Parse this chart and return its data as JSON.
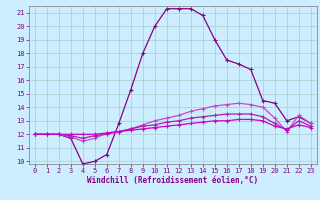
{
  "xlabel": "Windchill (Refroidissement éolien,°C)",
  "xlim": [
    -0.5,
    23.5
  ],
  "ylim": [
    9.8,
    21.5
  ],
  "yticks": [
    10,
    11,
    12,
    13,
    14,
    15,
    16,
    17,
    18,
    19,
    20,
    21
  ],
  "xticks": [
    0,
    1,
    2,
    3,
    4,
    5,
    6,
    7,
    8,
    9,
    10,
    11,
    12,
    13,
    14,
    15,
    16,
    17,
    18,
    19,
    20,
    21,
    22,
    23
  ],
  "background_color": "#cceeff",
  "grid_color": "#aacccc",
  "label_color": "#880088",
  "series": [
    {
      "y": [
        12.0,
        12.0,
        12.0,
        11.7,
        9.8,
        10.0,
        10.5,
        12.8,
        15.3,
        18.0,
        20.0,
        21.3,
        21.3,
        21.3,
        20.8,
        19.0,
        17.5,
        17.2,
        16.8,
        14.5,
        14.3,
        13.0,
        13.3,
        12.8
      ],
      "color": "#880088",
      "lw": 0.9,
      "marker": "+"
    },
    {
      "y": [
        12.0,
        12.0,
        12.0,
        11.8,
        11.5,
        11.7,
        12.1,
        12.2,
        12.4,
        12.7,
        13.0,
        13.2,
        13.4,
        13.7,
        13.9,
        14.1,
        14.2,
        14.3,
        14.2,
        14.0,
        13.2,
        12.2,
        13.4,
        12.8
      ],
      "color": "#cc44cc",
      "lw": 0.9,
      "marker": "+"
    },
    {
      "y": [
        12.0,
        12.0,
        12.0,
        11.9,
        11.7,
        11.9,
        12.0,
        12.2,
        12.4,
        12.6,
        12.7,
        12.9,
        13.0,
        13.2,
        13.3,
        13.4,
        13.5,
        13.5,
        13.5,
        13.3,
        12.8,
        12.3,
        13.0,
        12.6
      ],
      "color": "#aa22aa",
      "lw": 0.9,
      "marker": "+"
    },
    {
      "y": [
        12.0,
        12.0,
        12.0,
        12.0,
        12.0,
        12.0,
        12.1,
        12.2,
        12.3,
        12.4,
        12.5,
        12.6,
        12.7,
        12.8,
        12.9,
        13.0,
        13.0,
        13.1,
        13.1,
        13.0,
        12.6,
        12.4,
        12.7,
        12.5
      ],
      "color": "#cc00cc",
      "lw": 0.9,
      "marker": "+"
    }
  ]
}
